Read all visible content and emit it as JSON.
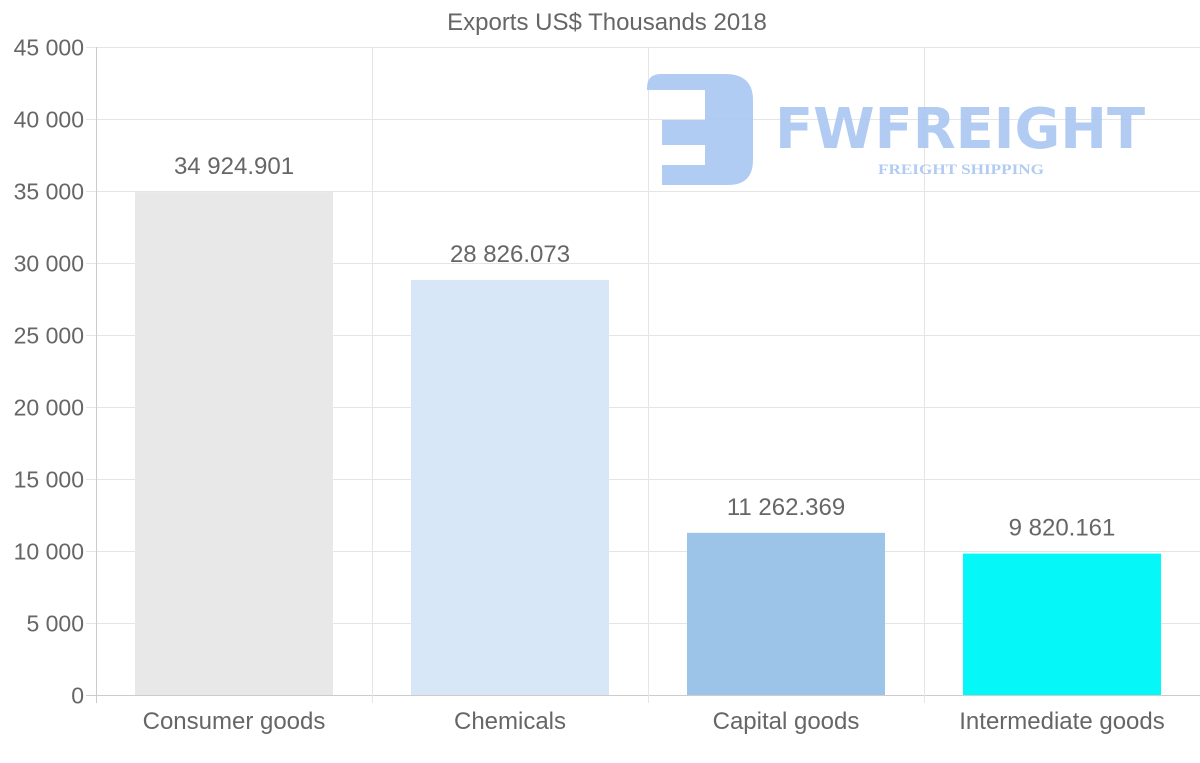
{
  "chart_data": {
    "type": "bar",
    "title": "Exports US$ Thousands 2018",
    "categories": [
      "Consumer goods",
      "Chemicals",
      "Capital goods",
      "Intermediate goods"
    ],
    "values": [
      34924.901,
      28826.073,
      11262.369,
      9820.161
    ],
    "data_labels": [
      "34 924.901",
      "28 826.073",
      "11 262.369",
      "9 820.161"
    ],
    "colors": [
      "#e8e8e8",
      "#d8e7f8",
      "#9cc4e8",
      "#05f7f7"
    ],
    "ylim": [
      0,
      45000
    ],
    "yticks": [
      0,
      5000,
      10000,
      15000,
      20000,
      25000,
      30000,
      35000,
      40000,
      45000
    ],
    "ytick_labels": [
      "0",
      "5 000",
      "10 000",
      "15 000",
      "20 000",
      "25 000",
      "30 000",
      "35 000",
      "40 000",
      "45 000"
    ],
    "xlabel": "",
    "ylabel": "",
    "grid": true,
    "legend": "none"
  },
  "watermark": {
    "brand": "FWFREIGHT",
    "tagline": "FREIGHT SHIPPING",
    "color": "#a9c6f2"
  }
}
